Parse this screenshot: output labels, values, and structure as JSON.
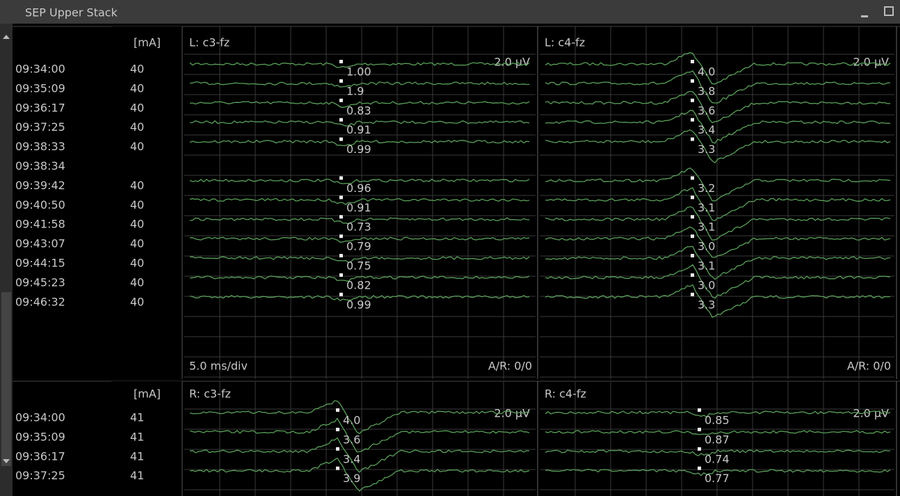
{
  "window": {
    "title": "SEP Upper Stack"
  },
  "panels": [
    {
      "unit": "[mA]",
      "timebase": "5.0 ms/div",
      "channels": [
        {
          "name": "L: c3-fz",
          "scale": "2.0 µV",
          "status": "A/R: 0/0"
        },
        {
          "name": "L: c4-fz",
          "scale": "2.0 µV",
          "status": "A/R: 0/0"
        }
      ],
      "rows": [
        {
          "time": "09:34:00",
          "current": "40",
          "labels": [
            "1.00",
            "4.0"
          ]
        },
        {
          "time": "09:35:09",
          "current": "40",
          "labels": [
            "1.9",
            "3.8"
          ]
        },
        {
          "time": "09:36:17",
          "current": "40",
          "labels": [
            "0.83",
            "3.6"
          ]
        },
        {
          "time": "09:37:25",
          "current": "40",
          "labels": [
            "0.91",
            "3.4"
          ]
        },
        {
          "time": "09:38:33",
          "current": "40",
          "labels": [
            "0.99",
            "3.3"
          ]
        },
        {
          "time": "09:38:34"
        },
        {
          "time": "09:39:42",
          "current": "40",
          "labels": [
            "0.96",
            "3.2"
          ]
        },
        {
          "time": "09:40:50",
          "current": "40",
          "labels": [
            "0.91",
            "3.1"
          ]
        },
        {
          "time": "09:41:58",
          "current": "40",
          "labels": [
            "0.73",
            "3.1"
          ]
        },
        {
          "time": "09:43:07",
          "current": "40",
          "labels": [
            "0.79",
            "3.0"
          ]
        },
        {
          "time": "09:44:15",
          "current": "40",
          "labels": [
            "0.75",
            "3.1"
          ]
        },
        {
          "time": "09:45:23",
          "current": "40",
          "labels": [
            "0.82",
            "3.0"
          ]
        },
        {
          "time": "09:46:32",
          "current": "40",
          "labels": [
            "0.99",
            "3.3"
          ]
        }
      ]
    },
    {
      "unit": "[mA]",
      "channels": [
        {
          "name": "R: c3-fz",
          "scale": "2.0 µV"
        },
        {
          "name": "R: c4-fz",
          "scale": "2.0 µV"
        }
      ],
      "rows": [
        {
          "time": "09:34:00",
          "current": "41",
          "labels": [
            "4.0",
            "0.85"
          ]
        },
        {
          "time": "09:35:09",
          "current": "41",
          "labels": [
            "3.6",
            "0.87"
          ]
        },
        {
          "time": "09:36:17",
          "current": "41",
          "labels": [
            "3.4",
            "0.74"
          ]
        },
        {
          "time": "09:37:25",
          "current": "41",
          "labels": [
            "3.9",
            "0.77"
          ]
        }
      ]
    }
  ]
}
